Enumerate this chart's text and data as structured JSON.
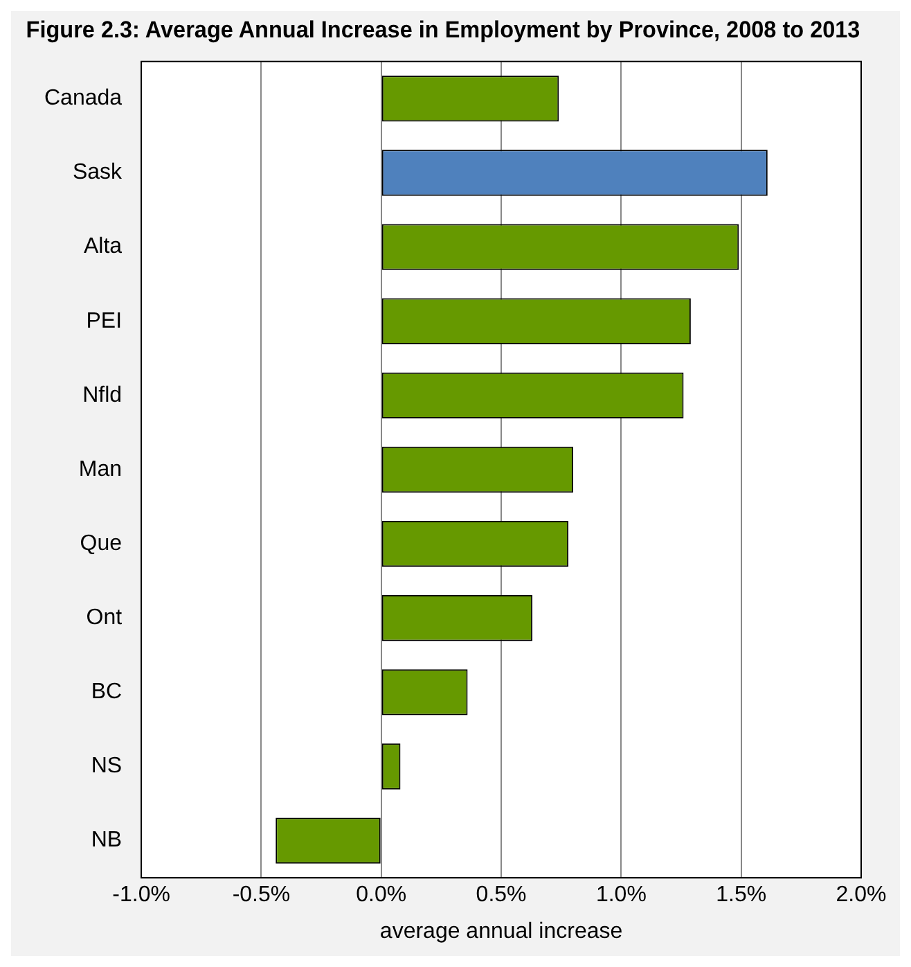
{
  "chart_data": {
    "type": "bar",
    "orientation": "horizontal",
    "title": "Figure 2.3: Average Annual Increase in Employment by Province, 2008 to 2013",
    "xlabel": "average annual increase",
    "categories": [
      "Canada",
      "Sask",
      "Alta",
      "PEI",
      "Nfld",
      "Man",
      "Que",
      "Ont",
      "BC",
      "NS",
      "NB"
    ],
    "values": [
      0.74,
      1.61,
      1.49,
      1.29,
      1.26,
      0.8,
      0.78,
      0.63,
      0.36,
      0.08,
      -0.44
    ],
    "colors": [
      "#669900",
      "#4f81bd",
      "#669900",
      "#669900",
      "#669900",
      "#669900",
      "#669900",
      "#669900",
      "#669900",
      "#669900",
      "#669900"
    ],
    "xlim": [
      -1.0,
      2.0
    ],
    "xticks": [
      {
        "value": -1.0,
        "label": "-1.0%"
      },
      {
        "value": -0.5,
        "label": "-0.5%"
      },
      {
        "value": 0,
        "label": "0.0%"
      },
      {
        "value": 0.5,
        "label": "0.5%"
      },
      {
        "value": 1.0,
        "label": "1.0%"
      },
      {
        "value": 1.5,
        "label": "1.5%"
      },
      {
        "value": 2.0,
        "label": "2.0%"
      }
    ],
    "grid": "x",
    "legend": false
  }
}
